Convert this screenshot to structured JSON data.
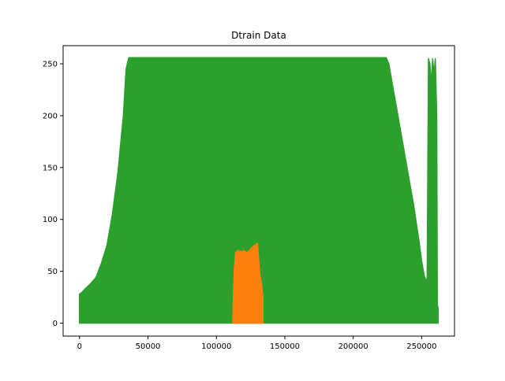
{
  "chart_data": {
    "type": "area",
    "title": "Dtrain Data",
    "xlabel": "",
    "ylabel": "",
    "xlim": [
      -12000,
      274000
    ],
    "ylim": [
      -12.5,
      267.5
    ],
    "grid": false,
    "legend": "none",
    "x_ticks": [
      0,
      50000,
      100000,
      150000,
      200000,
      250000
    ],
    "y_ticks": [
      0,
      50,
      100,
      150,
      200,
      250
    ],
    "series": [
      {
        "color": "#2ca02c",
        "style": "envelope",
        "x": [
          0,
          2000,
          4000,
          8000,
          12000,
          16000,
          20000,
          24000,
          28000,
          32000,
          34000,
          36000,
          40000,
          100000,
          200000,
          224000,
          226000,
          228000,
          232000,
          236000,
          240000,
          244000,
          248000,
          250000,
          252000,
          254000,
          255000,
          256000,
          257000,
          258000,
          259000,
          260000,
          261000,
          261500,
          262000
        ],
        "upper": [
          28,
          30,
          33,
          38,
          44,
          58,
          75,
          105,
          145,
          200,
          245,
          256,
          256,
          256,
          256,
          256,
          250,
          235,
          205,
          175,
          145,
          115,
          80,
          60,
          45,
          40,
          255,
          250,
          230,
          255,
          240,
          255,
          200,
          17,
          15
        ],
        "lower": [
          0,
          0,
          0,
          0,
          0,
          0,
          0,
          0,
          0,
          0,
          0,
          0,
          0,
          0,
          0,
          0,
          0,
          0,
          0,
          0,
          0,
          0,
          0,
          0,
          0,
          0,
          0,
          0,
          0,
          0,
          0,
          0,
          0,
          0,
          0
        ]
      },
      {
        "color": "#ff7f0e",
        "style": "envelope",
        "x": [
          112000,
          113000,
          114000,
          116000,
          118000,
          120000,
          122000,
          124000,
          126000,
          128000,
          130000,
          131000,
          132000,
          133000,
          134000
        ],
        "upper": [
          5,
          50,
          68,
          70,
          69,
          70,
          68,
          70,
          73,
          75,
          77,
          60,
          45,
          38,
          25
        ],
        "lower": [
          0,
          0,
          0,
          0,
          0,
          0,
          0,
          0,
          0,
          0,
          0,
          0,
          0,
          0,
          0
        ]
      }
    ]
  }
}
